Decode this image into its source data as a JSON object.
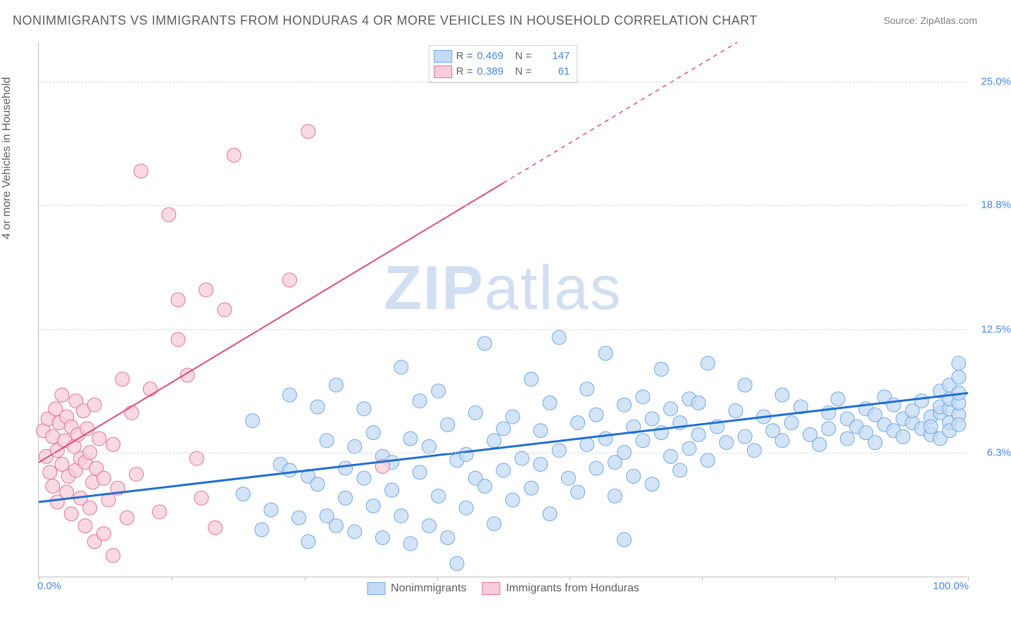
{
  "title": "NONIMMIGRANTS VS IMMIGRANTS FROM HONDURAS 4 OR MORE VEHICLES IN HOUSEHOLD CORRELATION CHART",
  "source": "Source: ZipAtlas.com",
  "ylabel": "4 or more Vehicles in Household",
  "watermark_a": "ZIP",
  "watermark_b": "atlas",
  "chart": {
    "type": "scatter",
    "background_color": "#ffffff",
    "grid_color": "#d6d6d6",
    "axis_color": "#c0c0c0",
    "xlim": [
      0,
      100
    ],
    "ylim": [
      0,
      27
    ],
    "ytick_values": [
      6.3,
      12.5,
      18.8,
      25.0
    ],
    "ytick_labels": [
      "6.3%",
      "12.5%",
      "18.8%",
      "25.0%"
    ],
    "xtick_values": [
      0,
      14.3,
      28.6,
      42.9,
      57.1,
      71.4,
      85.7,
      100
    ],
    "x_corner_left": "0.0%",
    "x_corner_right": "100.0%",
    "tick_color": "#4a86e8"
  },
  "series": [
    {
      "name": "Nonimmigrants",
      "marker_fill": "#c5dbf4",
      "marker_stroke": "#6fa8e8",
      "marker_radius": 10,
      "line_color": "#1f6fd4",
      "line_width": 3,
      "line_dash": "none",
      "trend": {
        "x1": 0,
        "y1": 3.8,
        "x2": 100,
        "y2": 9.3
      },
      "R": "0.469",
      "N": "147",
      "points": [
        [
          22,
          4.2
        ],
        [
          23,
          7.9
        ],
        [
          24,
          2.4
        ],
        [
          25,
          3.4
        ],
        [
          26,
          5.7
        ],
        [
          27,
          5.4
        ],
        [
          27,
          9.2
        ],
        [
          28,
          3.0
        ],
        [
          29,
          1.8
        ],
        [
          29,
          5.1
        ],
        [
          30,
          4.7
        ],
        [
          30,
          8.6
        ],
        [
          31,
          3.1
        ],
        [
          31,
          6.9
        ],
        [
          32,
          2.6
        ],
        [
          32,
          9.7
        ],
        [
          33,
          5.5
        ],
        [
          33,
          4.0
        ],
        [
          34,
          6.6
        ],
        [
          34,
          2.3
        ],
        [
          35,
          8.5
        ],
        [
          35,
          5.0
        ],
        [
          36,
          3.6
        ],
        [
          36,
          7.3
        ],
        [
          37,
          2.0
        ],
        [
          37,
          6.1
        ],
        [
          38,
          5.8
        ],
        [
          38,
          4.4
        ],
        [
          39,
          10.6
        ],
        [
          39,
          3.1
        ],
        [
          40,
          7.0
        ],
        [
          40,
          1.7
        ],
        [
          41,
          5.3
        ],
        [
          41,
          8.9
        ],
        [
          42,
          2.6
        ],
        [
          42,
          6.6
        ],
        [
          43,
          4.1
        ],
        [
          43,
          9.4
        ],
        [
          44,
          7.7
        ],
        [
          44,
          2.0
        ],
        [
          45,
          5.9
        ],
        [
          45,
          0.7
        ],
        [
          46,
          6.2
        ],
        [
          46,
          3.5
        ],
        [
          47,
          8.3
        ],
        [
          47,
          5.0
        ],
        [
          48,
          4.6
        ],
        [
          48,
          11.8
        ],
        [
          49,
          6.9
        ],
        [
          49,
          2.7
        ],
        [
          50,
          7.5
        ],
        [
          50,
          5.4
        ],
        [
          51,
          3.9
        ],
        [
          51,
          8.1
        ],
        [
          52,
          6.0
        ],
        [
          53,
          4.5
        ],
        [
          53,
          10.0
        ],
        [
          54,
          7.4
        ],
        [
          54,
          5.7
        ],
        [
          55,
          3.2
        ],
        [
          55,
          8.8
        ],
        [
          56,
          6.4
        ],
        [
          56,
          12.1
        ],
        [
          57,
          5.0
        ],
        [
          58,
          7.8
        ],
        [
          58,
          4.3
        ],
        [
          59,
          9.5
        ],
        [
          59,
          6.7
        ],
        [
          60,
          5.5
        ],
        [
          60,
          8.2
        ],
        [
          61,
          7.0
        ],
        [
          61,
          11.3
        ],
        [
          62,
          5.8
        ],
        [
          62,
          4.1
        ],
        [
          63,
          8.7
        ],
        [
          63,
          6.3
        ],
        [
          63,
          1.9
        ],
        [
          64,
          7.6
        ],
        [
          64,
          5.1
        ],
        [
          65,
          9.1
        ],
        [
          65,
          6.9
        ],
        [
          66,
          8.0
        ],
        [
          66,
          4.7
        ],
        [
          67,
          7.3
        ],
        [
          67,
          10.5
        ],
        [
          68,
          6.1
        ],
        [
          68,
          8.5
        ],
        [
          69,
          5.4
        ],
        [
          69,
          7.8
        ],
        [
          70,
          9.0
        ],
        [
          70,
          6.5
        ],
        [
          71,
          7.2
        ],
        [
          71,
          8.8
        ],
        [
          72,
          5.9
        ],
        [
          72,
          10.8
        ],
        [
          73,
          7.6
        ],
        [
          74,
          6.8
        ],
        [
          75,
          8.4
        ],
        [
          76,
          7.1
        ],
        [
          76,
          9.7
        ],
        [
          77,
          6.4
        ],
        [
          78,
          8.1
        ],
        [
          79,
          7.4
        ],
        [
          80,
          9.2
        ],
        [
          80,
          6.9
        ],
        [
          81,
          7.8
        ],
        [
          82,
          8.6
        ],
        [
          83,
          7.2
        ],
        [
          84,
          6.7
        ],
        [
          85,
          8.3
        ],
        [
          85,
          7.5
        ],
        [
          86,
          9.0
        ],
        [
          87,
          7.0
        ],
        [
          87,
          8.0
        ],
        [
          88,
          7.6
        ],
        [
          89,
          8.5
        ],
        [
          89,
          7.3
        ],
        [
          90,
          6.8
        ],
        [
          90,
          8.2
        ],
        [
          91,
          7.7
        ],
        [
          91,
          9.1
        ],
        [
          92,
          7.4
        ],
        [
          92,
          8.7
        ],
        [
          93,
          7.1
        ],
        [
          93,
          8.0
        ],
        [
          94,
          7.8
        ],
        [
          94,
          8.4
        ],
        [
          95,
          7.5
        ],
        [
          95,
          8.9
        ],
        [
          96,
          7.2
        ],
        [
          96,
          8.1
        ],
        [
          96,
          7.6
        ],
        [
          97,
          8.3
        ],
        [
          97,
          7.0
        ],
        [
          97,
          8.6
        ],
        [
          97,
          9.4
        ],
        [
          98,
          7.8
        ],
        [
          98,
          8.5
        ],
        [
          98,
          9.0
        ],
        [
          98,
          7.4
        ],
        [
          98,
          9.7
        ],
        [
          99,
          8.2
        ],
        [
          99,
          8.8
        ],
        [
          99,
          9.3
        ],
        [
          99,
          10.1
        ],
        [
          99,
          10.8
        ],
        [
          99,
          7.7
        ]
      ]
    },
    {
      "name": "Immigrants from Honduras",
      "marker_fill": "#f7cdd9",
      "marker_stroke": "#e86f95",
      "marker_radius": 10,
      "line_color": "#e34b7a",
      "line_width": 2,
      "line_dash": "dash_after",
      "trend": {
        "x1": 0,
        "y1": 5.8,
        "x2": 100,
        "y2": 34.0
      },
      "R": "0.389",
      "N": "61",
      "points": [
        [
          0.5,
          7.4
        ],
        [
          0.8,
          6.1
        ],
        [
          1.0,
          8.0
        ],
        [
          1.2,
          5.3
        ],
        [
          1.5,
          7.1
        ],
        [
          1.5,
          4.6
        ],
        [
          1.8,
          8.5
        ],
        [
          2.0,
          6.4
        ],
        [
          2.0,
          3.8
        ],
        [
          2.2,
          7.8
        ],
        [
          2.5,
          5.7
        ],
        [
          2.5,
          9.2
        ],
        [
          2.8,
          6.9
        ],
        [
          3.0,
          4.3
        ],
        [
          3.0,
          8.1
        ],
        [
          3.2,
          5.1
        ],
        [
          3.5,
          7.6
        ],
        [
          3.5,
          3.2
        ],
        [
          3.8,
          6.6
        ],
        [
          4.0,
          8.9
        ],
        [
          4.0,
          5.4
        ],
        [
          4.2,
          7.2
        ],
        [
          4.5,
          4.0
        ],
        [
          4.5,
          6.0
        ],
        [
          4.8,
          8.4
        ],
        [
          5.0,
          2.6
        ],
        [
          5.0,
          5.8
        ],
        [
          5.2,
          7.5
        ],
        [
          5.5,
          3.5
        ],
        [
          5.5,
          6.3
        ],
        [
          5.8,
          4.8
        ],
        [
          6.0,
          8.7
        ],
        [
          6.0,
          1.8
        ],
        [
          6.2,
          5.5
        ],
        [
          6.5,
          7.0
        ],
        [
          7.0,
          2.2
        ],
        [
          7.0,
          5.0
        ],
        [
          7.5,
          3.9
        ],
        [
          8.0,
          6.7
        ],
        [
          8.0,
          1.1
        ],
        [
          8.5,
          4.5
        ],
        [
          9.0,
          10.0
        ],
        [
          9.5,
          3.0
        ],
        [
          10.0,
          8.3
        ],
        [
          10.5,
          5.2
        ],
        [
          11.0,
          20.5
        ],
        [
          12.0,
          9.5
        ],
        [
          13.0,
          3.3
        ],
        [
          14.0,
          18.3
        ],
        [
          15.0,
          12.0
        ],
        [
          15.0,
          14.0
        ],
        [
          16.0,
          10.2
        ],
        [
          17.0,
          6.0
        ],
        [
          17.5,
          4.0
        ],
        [
          18.0,
          14.5
        ],
        [
          19.0,
          2.5
        ],
        [
          20.0,
          13.5
        ],
        [
          21.0,
          21.3
        ],
        [
          27.0,
          15.0
        ],
        [
          29.0,
          22.5
        ],
        [
          37.0,
          5.6
        ]
      ]
    }
  ],
  "bottom_legend": [
    {
      "label": "Nonimmigrants",
      "fill": "#c5dbf4",
      "stroke": "#6fa8e8"
    },
    {
      "label": "Immigrants from Honduras",
      "fill": "#f7cdd9",
      "stroke": "#e86f95"
    }
  ]
}
